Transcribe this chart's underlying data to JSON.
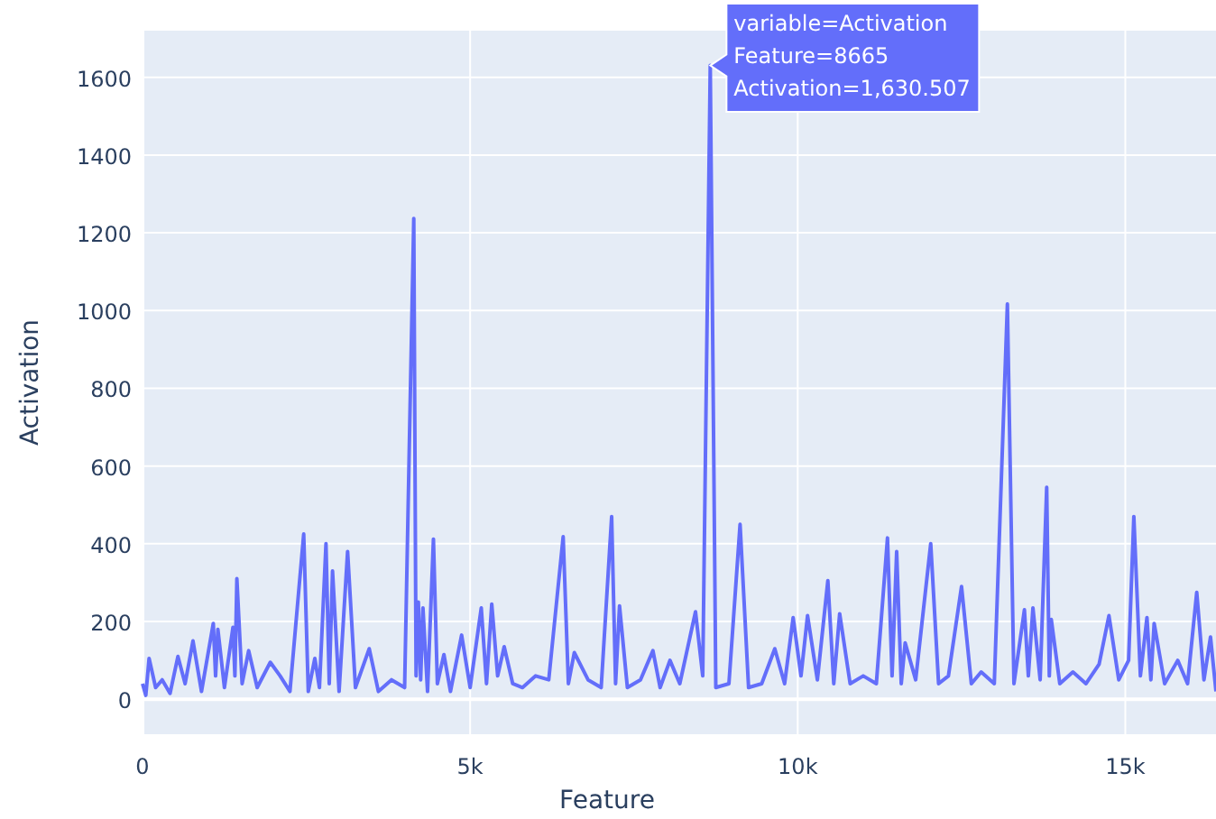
{
  "chart_data": {
    "type": "line",
    "xlabel": "Feature",
    "ylabel": "Activation",
    "xlim": [
      0,
      16384
    ],
    "ylim": [
      -90,
      1720
    ],
    "xticks": [
      0,
      {
        "value": 5000,
        "label": "5k"
      },
      {
        "value": 10000,
        "label": "10k"
      },
      {
        "value": 15000,
        "label": "15k"
      }
    ],
    "yticks": [
      0,
      200,
      400,
      600,
      800,
      1000,
      1200,
      1400,
      1600
    ],
    "grid": true,
    "annotations": [
      {
        "text": "variable=Activation\nFeature=8665\nActivation=1,630.507",
        "x": 8665,
        "y": 1630.507
      }
    ],
    "series": [
      {
        "color": "#636efa",
        "x": [
          0,
          50,
          100,
          200,
          300,
          420,
          540,
          650,
          770,
          900,
          1080,
          1115,
          1150,
          1250,
          1380,
          1410,
          1440,
          1520,
          1620,
          1750,
          1950,
          2100,
          2250,
          2460,
          2530,
          2630,
          2700,
          2800,
          2850,
          2900,
          3000,
          3130,
          3250,
          3460,
          3600,
          3800,
          4000,
          4140,
          4175,
          4210,
          4245,
          4280,
          4350,
          4440,
          4500,
          4600,
          4700,
          4870,
          5000,
          5170,
          5250,
          5330,
          5420,
          5520,
          5650,
          5800,
          6000,
          6200,
          6420,
          6500,
          6590,
          6800,
          7000,
          7160,
          7220,
          7280,
          7400,
          7600,
          7790,
          7900,
          8050,
          8200,
          8440,
          8550,
          8665,
          8750,
          8950,
          9120,
          9250,
          9450,
          9650,
          9800,
          9930,
          10050,
          10150,
          10300,
          10460,
          10550,
          10640,
          10800,
          11000,
          11200,
          11370,
          11440,
          11510,
          11580,
          11640,
          11800,
          12030,
          12150,
          12300,
          12500,
          12650,
          12800,
          13000,
          13200,
          13300,
          13460,
          13520,
          13590,
          13700,
          13800,
          13840,
          13870,
          14000,
          14200,
          14400,
          14600,
          14750,
          14900,
          15050,
          15130,
          15230,
          15330,
          15390,
          15440,
          15600,
          15800,
          15950,
          16090,
          16200,
          16300,
          16384
        ],
        "values": [
          40,
          10,
          105,
          30,
          50,
          15,
          110,
          40,
          150,
          20,
          195,
          60,
          180,
          30,
          185,
          60,
          310,
          40,
          125,
          30,
          95,
          60,
          20,
          425,
          20,
          105,
          30,
          400,
          40,
          330,
          20,
          380,
          30,
          130,
          20,
          50,
          30,
          1237,
          60,
          250,
          50,
          235,
          20,
          412,
          40,
          115,
          20,
          165,
          30,
          235,
          40,
          245,
          60,
          135,
          40,
          30,
          60,
          50,
          418,
          40,
          120,
          50,
          30,
          470,
          40,
          240,
          30,
          50,
          125,
          30,
          100,
          40,
          225,
          60,
          1630.507,
          30,
          40,
          450,
          30,
          40,
          130,
          40,
          210,
          60,
          215,
          50,
          305,
          40,
          220,
          40,
          60,
          40,
          415,
          60,
          380,
          40,
          145,
          50,
          400,
          40,
          60,
          290,
          40,
          70,
          40,
          1017,
          40,
          230,
          60,
          235,
          50,
          545,
          60,
          205,
          40,
          70,
          40,
          90,
          215,
          50,
          100,
          470,
          60,
          210,
          50,
          195,
          40,
          100,
          40,
          275,
          50,
          160,
          20
        ]
      }
    ]
  }
}
